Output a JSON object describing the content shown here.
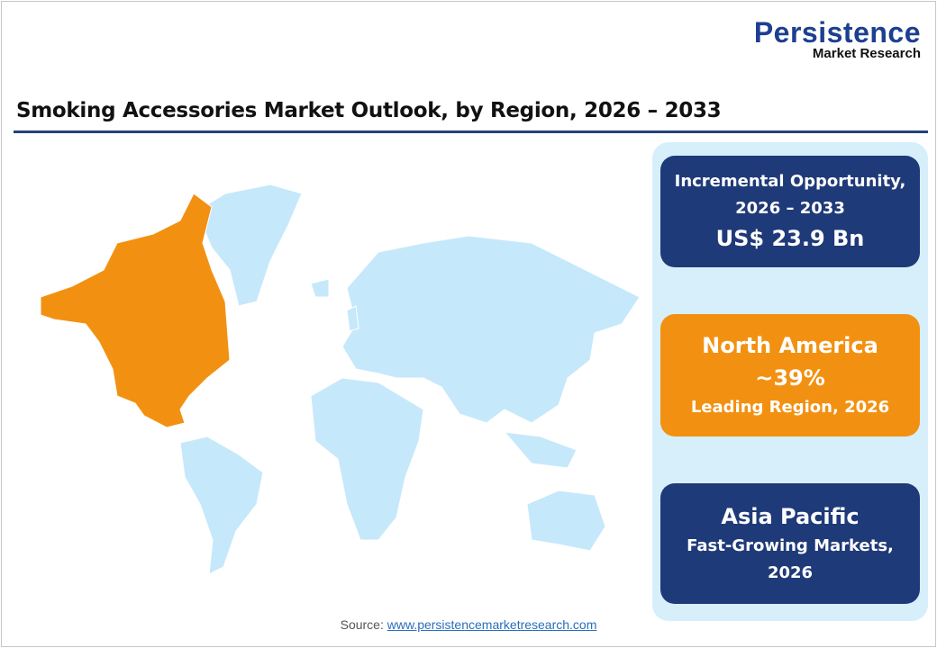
{
  "logo": {
    "line1": "Persistence",
    "line2": "Market Research"
  },
  "title": "Smoking Accessories Market Outlook, by Region, 2026 – 2033",
  "map": {
    "highlighted_region": "North America",
    "highlight_color": "#f29111",
    "base_color": "#c6e8fb"
  },
  "cards": [
    {
      "line1": "Incremental Opportunity,",
      "line2": "2026 – 2033",
      "value": "US$ 23.9 Bn",
      "color": "#1f3a78"
    },
    {
      "line1": "North America",
      "value": "~39%",
      "line2": "Leading Region, 2026",
      "color": "#f29111"
    },
    {
      "line1": "Asia Pacific",
      "line2": "Fast-Growing Markets,",
      "line3": "2026",
      "color": "#1f3a78"
    }
  ],
  "source": {
    "label": "Source:",
    "link": "www.persistencemarketresearch.com"
  }
}
